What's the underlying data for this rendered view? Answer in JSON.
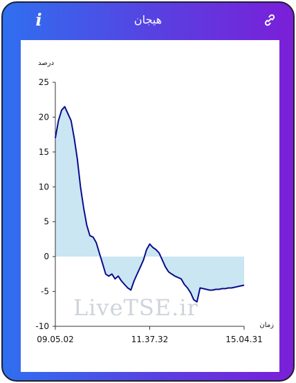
{
  "header": {
    "title": "هیجان",
    "info_icon": "info-icon",
    "link_icon": "link-icon"
  },
  "colors": {
    "frame_gradient_start": "#2f6ff0",
    "frame_gradient_end": "#7a1fd8",
    "line": "#0a0a8c",
    "fill": "#c9e6f2"
  },
  "watermark": "LiveTSE.ir",
  "chart_data": {
    "type": "area",
    "ylabel": "درصد",
    "xlabel": "زمان",
    "ylim": [
      -10,
      25
    ],
    "yticks": [
      25,
      20,
      15,
      10,
      5,
      0,
      -5,
      -10
    ],
    "xticks": [
      "09.05.02",
      "11.37.32",
      "15.04.31"
    ],
    "grid": false,
    "baseline": 0,
    "series": [
      {
        "values": [
          17.0,
          19.5,
          21.0,
          21.5,
          20.5,
          19.5,
          17.0,
          14.0,
          10.0,
          7.0,
          4.5,
          3.0,
          2.8,
          2.0,
          0.5,
          -1.0,
          -2.5,
          -2.8,
          -2.5,
          -3.2,
          -2.8,
          -3.5,
          -4.0,
          -4.5,
          -4.8,
          -3.5,
          -2.5,
          -1.5,
          -0.5,
          1.0,
          1.8,
          1.3,
          1.0,
          0.5,
          -0.5,
          -1.5,
          -2.2,
          -2.5,
          -2.8,
          -3.0,
          -3.2,
          -4.0,
          -4.5,
          -5.2,
          -6.2,
          -6.5,
          -4.5,
          -4.6,
          -4.7,
          -4.8,
          -4.8,
          -4.7,
          -4.7,
          -4.6,
          -4.6,
          -4.5,
          -4.5,
          -4.4,
          -4.3,
          -4.2,
          -4.1
        ]
      }
    ]
  }
}
